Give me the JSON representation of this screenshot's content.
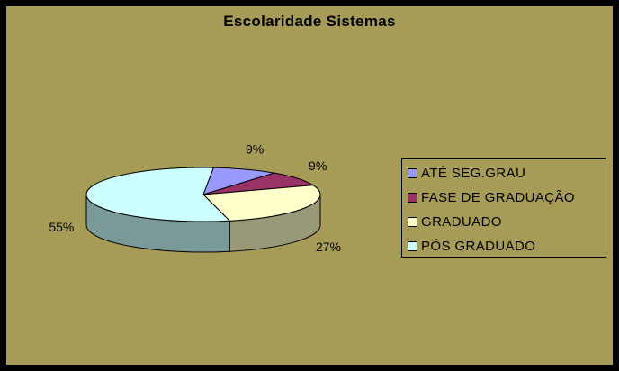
{
  "chart_data": {
    "type": "pie",
    "title": "Escolaridade Sistemas",
    "categories": [
      "ATÉ SEG.GRAU",
      "FASE DE GRADUAÇÃO",
      "GRADUADO",
      "PÓS GRADUADO"
    ],
    "values": [
      9,
      9,
      27,
      55
    ],
    "value_labels": [
      "9%",
      "9%",
      "27%",
      "55%"
    ],
    "colors": [
      "#9999FF",
      "#993366",
      "#FFFFCC",
      "#CCFFFF"
    ],
    "side_colors": [
      "#5C5C99",
      "#5C1F3D",
      "#99997A",
      "#7A9999"
    ],
    "style": "3d",
    "legend_position": "right"
  },
  "colors": {
    "background": "#A69C58",
    "frame": "#000000"
  }
}
